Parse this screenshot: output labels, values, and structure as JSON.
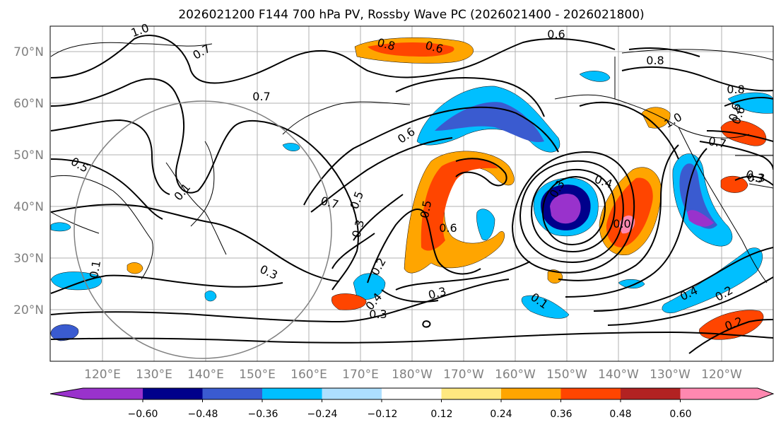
{
  "title": "2026021200 F144 700 hPa PV, Rossby Wave PC (2026021400 - 2026021800)",
  "map": {
    "lat_labels": [
      "70°N",
      "60°N",
      "50°N",
      "40°N",
      "30°N",
      "20°N"
    ],
    "lon_labels": [
      "120°E",
      "130°E",
      "140°E",
      "150°E",
      "160°E",
      "170°E",
      "180°W",
      "170°W",
      "160°W",
      "150°W",
      "140°W",
      "130°W",
      "120°W"
    ],
    "contour_labels": [
      "1.0",
      "0.7",
      "0.7",
      "0.5",
      "0.1",
      "0.7",
      "0.5",
      "0.3",
      "0.3",
      "0.3",
      "0.2",
      "0.4",
      "0.6",
      "0.5",
      "0.6",
      "0.3",
      "0.6",
      "0.8",
      "0.6",
      "0.3",
      "0.4",
      "0.3",
      "0.1",
      "0.4",
      "0.2",
      "0.2",
      "0.6",
      "0.8",
      "0.8",
      "0.6",
      "1.0",
      "0.7",
      "0.3",
      "0.0",
      "0.1"
    ]
  },
  "colorbar": {
    "ticks": [
      "−0.60",
      "−0.48",
      "−0.36",
      "−0.24",
      "−0.12",
      "0.12",
      "0.24",
      "0.36",
      "0.48",
      "0.60"
    ],
    "colors": [
      "#9932CC",
      "#00008B",
      "#3A5BD0",
      "#00BFFF",
      "#ADDFFF",
      "#FFFFFF",
      "#FFE880",
      "#FFA500",
      "#FF4500",
      "#B22222",
      "#FF88B0"
    ]
  }
}
